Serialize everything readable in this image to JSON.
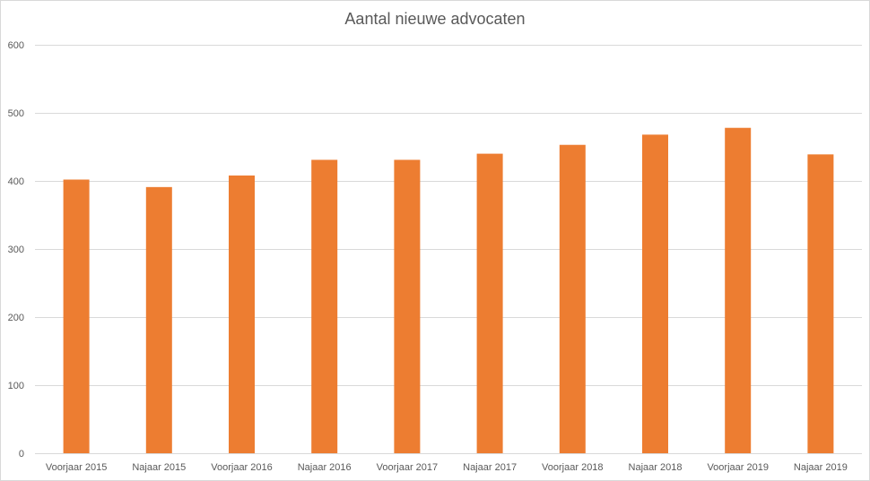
{
  "chart_data": {
    "type": "bar",
    "title": "Aantal nieuwe advocaten",
    "xlabel": "",
    "ylabel": "",
    "ylim": [
      0,
      600
    ],
    "yticks": [
      0,
      100,
      200,
      300,
      400,
      500,
      600
    ],
    "grid": true,
    "legend": "none",
    "bar_color": "#ED7D31",
    "categories": [
      "Voorjaar 2015",
      "Najaar 2015",
      "Voorjaar 2016",
      "Najaar 2016",
      "Voorjaar 2017",
      "Najaar 2017",
      "Voorjaar 2018",
      "Najaar 2018",
      "Voorjaar 2019",
      "Najaar 2019"
    ],
    "values": [
      402,
      391,
      408,
      431,
      431,
      440,
      453,
      468,
      478,
      439
    ]
  }
}
